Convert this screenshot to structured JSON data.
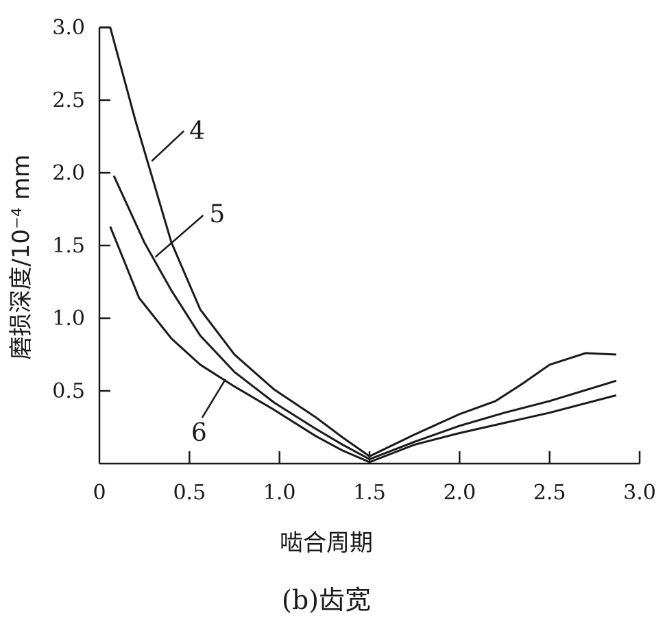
{
  "chart_data": {
    "type": "line",
    "caption": "(b)齿宽",
    "xlabel": "啮合周期",
    "ylabel": "磨损深度/10⁻⁴ mm",
    "xlim": [
      0,
      3.0
    ],
    "ylim": [
      0,
      3.0
    ],
    "x_ticks": [
      "0",
      "0.5",
      "1.0",
      "1.5",
      "2.0",
      "2.5",
      "3.0"
    ],
    "y_ticks": [
      "0.5",
      "1.0",
      "1.5",
      "2.0",
      "2.5",
      "3.0"
    ],
    "x_tick_values": [
      0,
      0.5,
      1.0,
      1.5,
      2.0,
      2.5,
      3.0
    ],
    "y_tick_values": [
      0.5,
      1.0,
      1.5,
      2.0,
      2.5,
      3.0
    ],
    "grid": false,
    "series": [
      {
        "name": "4",
        "x": [
          0.0,
          0.06,
          0.2,
          0.4,
          0.56,
          0.75,
          0.97,
          1.2,
          1.35,
          1.5,
          1.75,
          2.0,
          2.2,
          2.35,
          2.5,
          2.7,
          2.87
        ],
        "y": [
          3.0,
          3.0,
          2.36,
          1.52,
          1.06,
          0.75,
          0.51,
          0.32,
          0.18,
          0.05,
          0.2,
          0.34,
          0.43,
          0.55,
          0.68,
          0.76,
          0.75
        ]
      },
      {
        "name": "5",
        "x": [
          0.08,
          0.25,
          0.4,
          0.56,
          0.75,
          0.97,
          1.2,
          1.35,
          1.5,
          1.75,
          2.0,
          2.25,
          2.5,
          2.87
        ],
        "y": [
          1.98,
          1.52,
          1.19,
          0.88,
          0.63,
          0.42,
          0.24,
          0.13,
          0.03,
          0.15,
          0.26,
          0.35,
          0.43,
          0.57
        ]
      },
      {
        "name": "6",
        "x": [
          0.06,
          0.22,
          0.4,
          0.56,
          0.75,
          0.97,
          1.2,
          1.35,
          1.5,
          1.75,
          2.0,
          2.25,
          2.5,
          2.87
        ],
        "y": [
          1.63,
          1.14,
          0.86,
          0.68,
          0.53,
          0.37,
          0.19,
          0.09,
          0.01,
          0.13,
          0.21,
          0.28,
          0.35,
          0.47
        ]
      }
    ]
  }
}
